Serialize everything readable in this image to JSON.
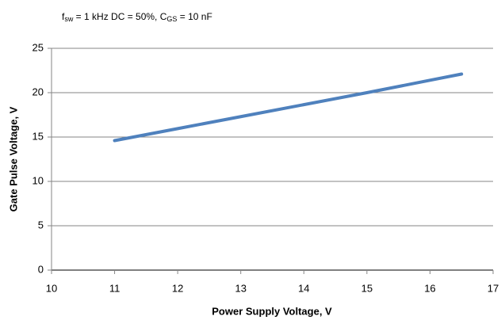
{
  "chart_data": {
    "type": "line",
    "title": [
      "f",
      "sw",
      " = 1 kHz DC = 50%, C",
      "GS",
      " = 10 nF"
    ],
    "x_label": "Power Supply Voltage, V",
    "y_label": "Gate Pulse Voltage, V",
    "x": [
      11,
      12,
      13,
      14,
      15,
      16,
      16.5
    ],
    "series": [
      {
        "name": null,
        "color": "#4f81bd",
        "values": [
          14.6,
          15.95,
          17.3,
          18.65,
          20.0,
          21.4,
          22.1
        ]
      }
    ],
    "xlim": [
      10,
      17
    ],
    "xticks": [
      10,
      11,
      12,
      13,
      14,
      15,
      16,
      17
    ],
    "ylim": [
      0,
      25
    ],
    "yticks": [
      0,
      5,
      10,
      15,
      20,
      25
    ],
    "grid": true
  }
}
